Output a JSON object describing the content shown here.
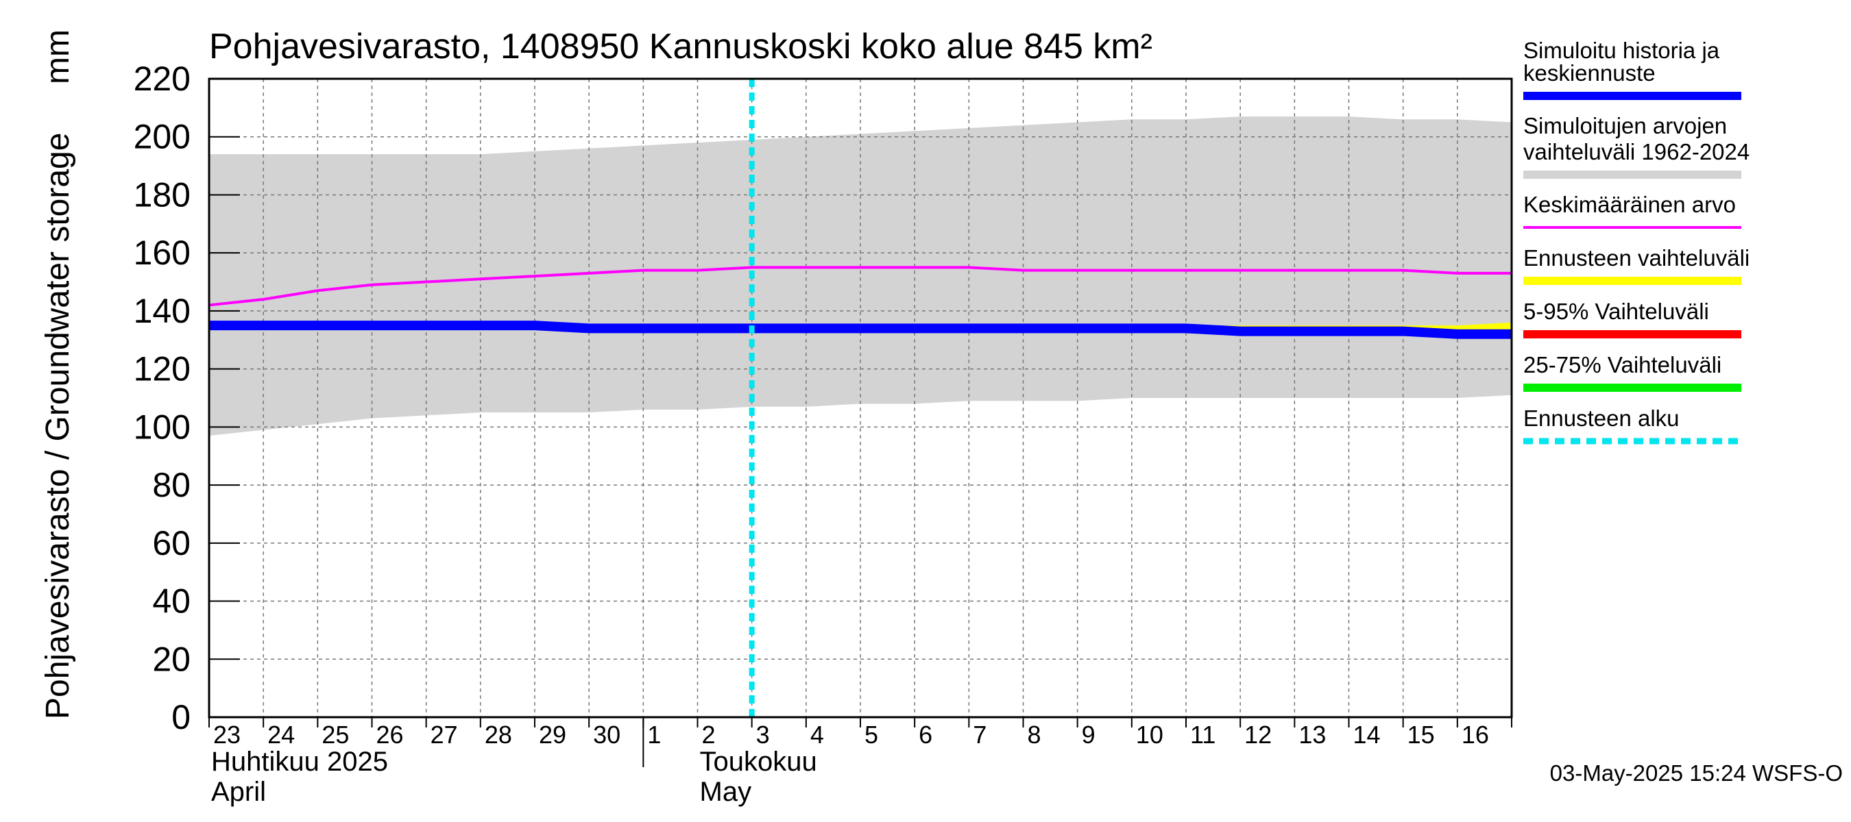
{
  "chart_data": {
    "type": "area",
    "title": "Pohjavesivarasto, 1408950 Kannuskoski koko alue 845 km²",
    "ylabel": "Pohjavesivarasto / Groundwater storage",
    "yunit": "mm",
    "ylim": [
      0,
      220
    ],
    "yticks": [
      0,
      20,
      40,
      60,
      80,
      100,
      120,
      140,
      160,
      180,
      200,
      220
    ],
    "xlim": [
      0,
      24
    ],
    "day_labels": [
      "23",
      "24",
      "25",
      "26",
      "27",
      "28",
      "29",
      "30",
      "1",
      "2",
      "3",
      "4",
      "5",
      "6",
      "7",
      "8",
      "9",
      "10",
      "11",
      "12",
      "13",
      "14",
      "15",
      "16"
    ],
    "month_labels": [
      {
        "line1": "Huhtikuu  2025",
        "line2": "April",
        "at_day_index": 0
      },
      {
        "line1": "Toukokuu",
        "line2": "May",
        "at_day_index": 9
      }
    ],
    "month_boundary_day_index": 8,
    "forecast_start_x": 10.0,
    "x": [
      0,
      1,
      2,
      3,
      4,
      5,
      6,
      7,
      8,
      9,
      10,
      11,
      12,
      13,
      14,
      15,
      16,
      17,
      18,
      19,
      20,
      21,
      22,
      23,
      24
    ],
    "range_upper": [
      194,
      194,
      194,
      194,
      194,
      194,
      195,
      196,
      197,
      198,
      199,
      200,
      201,
      202,
      203,
      204,
      205,
      206,
      206,
      207,
      207,
      207,
      206,
      206,
      205
    ],
    "range_lower": [
      97,
      99,
      101,
      103,
      104,
      105,
      105,
      105,
      106,
      106,
      107,
      107,
      108,
      108,
      109,
      109,
      109,
      110,
      110,
      110,
      110,
      110,
      110,
      110,
      111
    ],
    "mean": [
      142,
      144,
      147,
      149,
      150,
      151,
      152,
      153,
      154,
      154,
      155,
      155,
      155,
      155,
      155,
      154,
      154,
      154,
      154,
      154,
      154,
      154,
      154,
      153,
      153
    ],
    "sim_forecast": [
      135,
      135,
      135,
      135,
      135,
      135,
      135,
      134,
      134,
      134,
      134,
      134,
      134,
      134,
      134,
      134,
      134,
      134,
      134,
      133,
      133,
      133,
      133,
      132,
      132
    ],
    "forecast_range_upper": [
      134,
      134,
      134,
      134,
      135,
      135,
      135,
      135,
      135,
      135,
      135,
      135,
      135,
      135,
      135,
      136
    ],
    "forecast_range_x_start": 9,
    "series_colors": {
      "range": "#d3d3d3",
      "mean": "#ff00ff",
      "sim_forecast": "#0000ff",
      "forecast_range": "#ffff00",
      "p5_95": "#ff0000",
      "p25_75": "#00ee00",
      "forecast_start": "#00e5ee"
    },
    "legend": [
      {
        "label_line1": "Simuloitu historia ja",
        "label_line2": "keskiennuste",
        "color": "#0000ff",
        "style": "thick"
      },
      {
        "label_line1": "Simuloitujen arvojen",
        "label_line2": "vaihteluväli 1962-2024",
        "color": "#d3d3d3",
        "style": "thick"
      },
      {
        "label_line1": "Keskimääräinen arvo",
        "label_line2": "",
        "color": "#ff00ff",
        "style": "thin"
      },
      {
        "label_line1": "Ennusteen vaihteluväli",
        "label_line2": "",
        "color": "#ffff00",
        "style": "thick"
      },
      {
        "label_line1": "5-95% Vaihteluväli",
        "label_line2": "",
        "color": "#ff0000",
        "style": "thick"
      },
      {
        "label_line1": "25-75% Vaihteluväli",
        "label_line2": "",
        "color": "#00ee00",
        "style": "thick"
      },
      {
        "label_line1": "Ennusteen alku",
        "label_line2": "",
        "color": "#00e5ee",
        "style": "dashed"
      }
    ],
    "timestamp": "03-May-2025 15:24 WSFS-O"
  }
}
